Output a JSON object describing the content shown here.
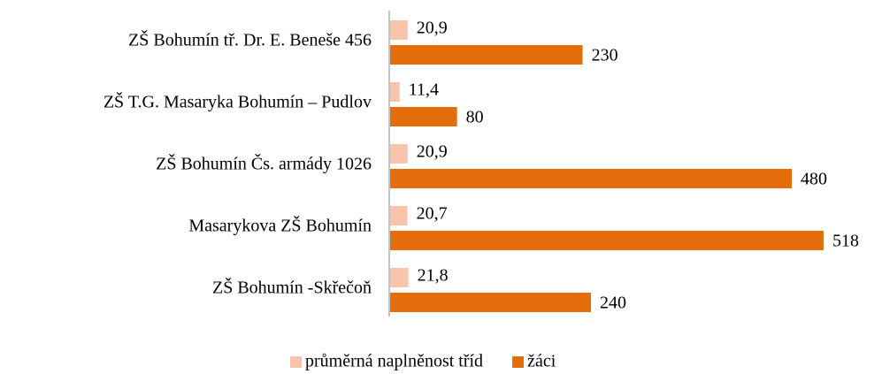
{
  "chart_data": {
    "type": "hbar",
    "categories": [
      "ZŠ Bohumín tř. Dr. E. Beneše 456",
      "ZŠ T.G. Masaryka Bohumín – Pudlov",
      "ZŠ Bohumín Čs. armády 1026",
      "Masarykova ZŠ Bohumín",
      "ZŠ Bohumín -Skřečoň"
    ],
    "series": [
      {
        "name": "průměrná naplněnost tříd",
        "color": "#f9c4ac",
        "values": [
          20.9,
          11.4,
          20.9,
          20.7,
          21.8
        ],
        "value_labels": [
          "20,9",
          "11,4",
          "20,9",
          "20,7",
          "21,8"
        ]
      },
      {
        "name": "žáci",
        "color": "#e46c0a",
        "values": [
          230,
          80,
          480,
          518,
          240
        ]
      }
    ],
    "legend": "bottom"
  }
}
